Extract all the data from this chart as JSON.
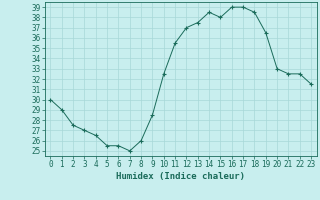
{
  "x": [
    0,
    1,
    2,
    3,
    4,
    5,
    6,
    7,
    8,
    9,
    10,
    11,
    12,
    13,
    14,
    15,
    16,
    17,
    18,
    19,
    20,
    21,
    22,
    23
  ],
  "y": [
    30,
    29,
    27.5,
    27,
    26.5,
    25.5,
    25.5,
    25,
    26,
    28.5,
    32.5,
    35.5,
    37,
    37.5,
    38.5,
    38,
    39,
    39,
    38.5,
    36.5,
    33,
    32.5,
    32.5,
    31.5
  ],
  "line_color": "#1a6b5a",
  "marker": "+",
  "bg_color": "#c8eeee",
  "grid_color": "#a8d8d8",
  "axis_color": "#1a6b5a",
  "tick_label_color": "#1a6b5a",
  "xlabel": "Humidex (Indice chaleur)",
  "xlabel_color": "#1a6b5a",
  "xlim": [
    -0.5,
    23.5
  ],
  "ylim": [
    24.5,
    39.5
  ],
  "yticks": [
    25,
    26,
    27,
    28,
    29,
    30,
    31,
    32,
    33,
    34,
    35,
    36,
    37,
    38,
    39
  ],
  "xticks": [
    0,
    1,
    2,
    3,
    4,
    5,
    6,
    7,
    8,
    9,
    10,
    11,
    12,
    13,
    14,
    15,
    16,
    17,
    18,
    19,
    20,
    21,
    22,
    23
  ],
  "tick_fontsize": 5.5,
  "label_fontsize": 6.5
}
